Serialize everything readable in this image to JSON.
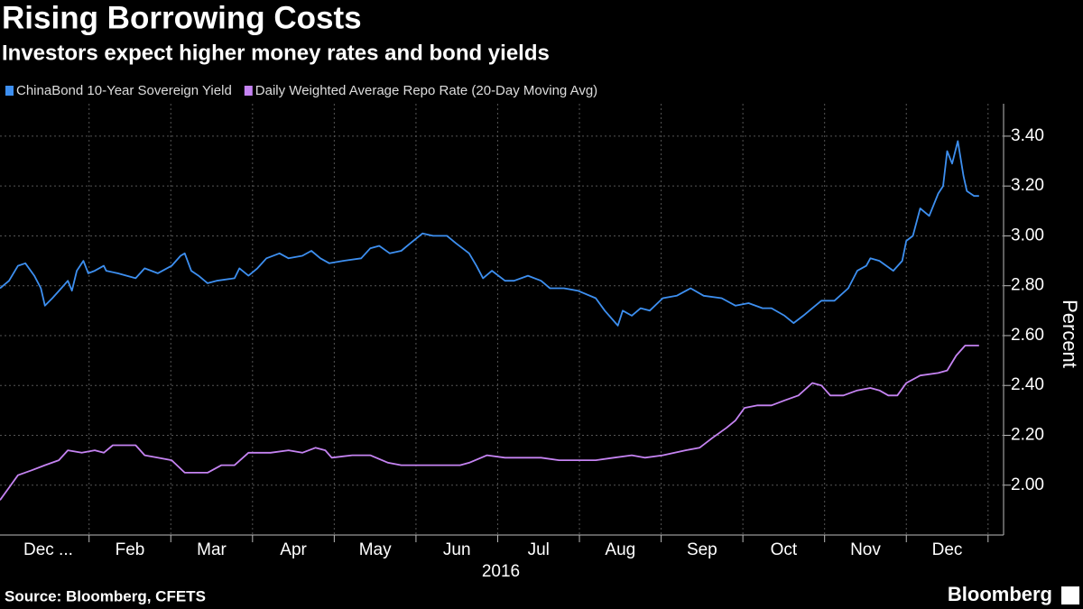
{
  "chart_data": {
    "type": "line",
    "title": "Rising Borrowing Costs",
    "subtitle": "Investors expect higher money rates and bond yields",
    "xlabel": "2016",
    "ylabel": "Percent",
    "xlim": [
      -0.09,
      12.19
    ],
    "xticks": [
      {
        "value": 0.5,
        "label": "Dec ..."
      },
      {
        "value": 1.5,
        "label": "Feb"
      },
      {
        "value": 2.5,
        "label": "Mar"
      },
      {
        "value": 3.5,
        "label": "Apr"
      },
      {
        "value": 4.5,
        "label": "May"
      },
      {
        "value": 5.5,
        "label": "Jun"
      },
      {
        "value": 6.5,
        "label": "Jul"
      },
      {
        "value": 7.5,
        "label": "Aug"
      },
      {
        "value": 8.5,
        "label": "Sep"
      },
      {
        "value": 9.5,
        "label": "Oct"
      },
      {
        "value": 10.5,
        "label": "Nov"
      },
      {
        "value": 11.5,
        "label": "Dec"
      }
    ],
    "ylim": [
      1.8,
      3.53
    ],
    "yticks": [
      {
        "value": 2.0,
        "label": "2.00"
      },
      {
        "value": 2.2,
        "label": "2.20"
      },
      {
        "value": 2.4,
        "label": "2.40"
      },
      {
        "value": 2.6,
        "label": "2.60"
      },
      {
        "value": 2.8,
        "label": "2.80"
      },
      {
        "value": 3.0,
        "label": "3.00"
      },
      {
        "value": 3.2,
        "label": "3.20"
      },
      {
        "value": 3.4,
        "label": "3.40"
      }
    ],
    "grid": true,
    "legend": "top-left",
    "series": [
      {
        "name": "ChinaBond 10-Year Sovereign Yield",
        "color": "#3d8ff0",
        "x": [
          -0.09,
          0.02,
          0.13,
          0.22,
          0.33,
          0.41,
          0.46,
          0.55,
          0.66,
          0.74,
          0.79,
          0.85,
          0.93,
          0.99,
          1.07,
          1.18,
          1.21,
          1.35,
          1.57,
          1.68,
          1.84,
          2.01,
          2.12,
          2.17,
          2.25,
          2.34,
          2.45,
          2.56,
          2.78,
          2.84,
          2.95,
          3.06,
          3.17,
          3.33,
          3.44,
          3.61,
          3.72,
          3.83,
          3.94,
          4.11,
          4.33,
          4.44,
          4.55,
          4.68,
          4.82,
          4.93,
          5.08,
          5.21,
          5.38,
          5.49,
          5.65,
          5.74,
          5.82,
          5.93,
          6.09,
          6.2,
          6.37,
          6.53,
          6.64,
          6.81,
          6.98,
          7.2,
          7.31,
          7.47,
          7.53,
          7.64,
          7.75,
          7.86,
          8.02,
          8.19,
          8.36,
          8.52,
          8.74,
          8.91,
          9.07,
          9.24,
          9.35,
          9.51,
          9.62,
          9.74,
          9.85,
          9.96,
          10.12,
          10.29,
          10.4,
          10.51,
          10.56,
          10.67,
          10.84,
          10.95,
          11.0,
          11.08,
          11.17,
          11.28,
          11.39,
          11.45,
          11.5,
          11.56,
          11.63,
          11.7,
          11.74,
          11.83,
          11.89
        ],
        "values": [
          2.79,
          2.82,
          2.88,
          2.89,
          2.84,
          2.79,
          2.72,
          2.75,
          2.79,
          2.82,
          2.78,
          2.86,
          2.9,
          2.85,
          2.86,
          2.88,
          2.86,
          2.85,
          2.83,
          2.87,
          2.85,
          2.88,
          2.92,
          2.93,
          2.86,
          2.84,
          2.81,
          2.82,
          2.83,
          2.87,
          2.84,
          2.87,
          2.91,
          2.93,
          2.91,
          2.92,
          2.94,
          2.91,
          2.89,
          2.9,
          2.91,
          2.95,
          2.96,
          2.93,
          2.94,
          2.97,
          3.01,
          3.0,
          3.0,
          2.97,
          2.93,
          2.88,
          2.83,
          2.86,
          2.82,
          2.82,
          2.84,
          2.82,
          2.79,
          2.79,
          2.78,
          2.75,
          2.7,
          2.64,
          2.7,
          2.68,
          2.71,
          2.7,
          2.75,
          2.76,
          2.79,
          2.76,
          2.75,
          2.72,
          2.73,
          2.71,
          2.71,
          2.68,
          2.65,
          2.68,
          2.71,
          2.74,
          2.74,
          2.79,
          2.86,
          2.88,
          2.91,
          2.9,
          2.86,
          2.9,
          2.98,
          3.0,
          3.11,
          3.08,
          3.17,
          3.2,
          3.34,
          3.29,
          3.38,
          3.24,
          3.18,
          3.16,
          3.16
        ]
      },
      {
        "name": "Daily Weighted Average Repo Rate (20-Day Moving Avg)",
        "color": "#c583f2",
        "x": [
          -0.09,
          0.02,
          0.13,
          0.3,
          0.46,
          0.63,
          0.74,
          0.91,
          1.07,
          1.18,
          1.29,
          1.4,
          1.57,
          1.68,
          1.84,
          2.01,
          2.17,
          2.28,
          2.45,
          2.62,
          2.78,
          2.95,
          3.22,
          3.44,
          3.61,
          3.77,
          3.89,
          3.97,
          4.22,
          4.44,
          4.66,
          4.82,
          5.1,
          5.32,
          5.54,
          5.65,
          5.87,
          6.09,
          6.31,
          6.53,
          6.75,
          6.92,
          7.2,
          7.42,
          7.64,
          7.8,
          8.02,
          8.3,
          8.47,
          8.63,
          8.8,
          8.91,
          9.02,
          9.18,
          9.35,
          9.51,
          9.68,
          9.85,
          9.96,
          10.07,
          10.23,
          10.4,
          10.56,
          10.67,
          10.78,
          10.89,
          11.0,
          11.17,
          11.39,
          11.5,
          11.61,
          11.72,
          11.89
        ],
        "values": [
          1.94,
          1.99,
          2.04,
          2.06,
          2.08,
          2.1,
          2.14,
          2.13,
          2.14,
          2.13,
          2.16,
          2.16,
          2.16,
          2.12,
          2.11,
          2.1,
          2.05,
          2.05,
          2.05,
          2.08,
          2.08,
          2.13,
          2.13,
          2.14,
          2.13,
          2.15,
          2.14,
          2.11,
          2.12,
          2.12,
          2.09,
          2.08,
          2.08,
          2.08,
          2.08,
          2.09,
          2.12,
          2.11,
          2.11,
          2.11,
          2.1,
          2.1,
          2.1,
          2.11,
          2.12,
          2.11,
          2.12,
          2.14,
          2.15,
          2.19,
          2.23,
          2.26,
          2.31,
          2.32,
          2.32,
          2.34,
          2.36,
          2.41,
          2.4,
          2.36,
          2.36,
          2.38,
          2.39,
          2.38,
          2.36,
          2.36,
          2.41,
          2.44,
          2.45,
          2.46,
          2.52,
          2.56,
          2.56
        ]
      }
    ],
    "source": "Source: Bloomberg, CFETS",
    "brand": "Bloomberg"
  }
}
